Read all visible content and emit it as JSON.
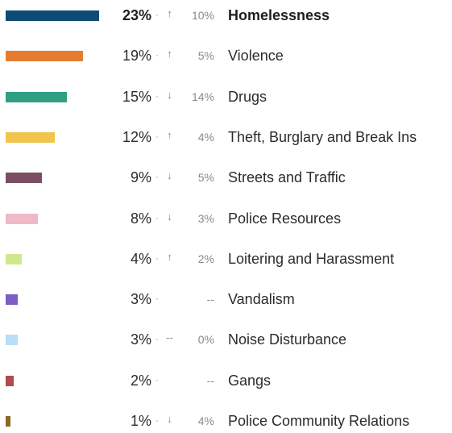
{
  "categories": [
    {
      "label": "Homelessness",
      "percent": "23%",
      "direction": "↑",
      "change": "10%",
      "color": "#0f4c75",
      "share": 0.23,
      "active": true
    },
    {
      "label": "Violence",
      "percent": "19%",
      "direction": "↑",
      "change": "5%",
      "color": "#e47e2e",
      "share": 0.19
    },
    {
      "label": "Drugs",
      "percent": "15%",
      "direction": "↓",
      "change": "14%",
      "color": "#2f9e82",
      "share": 0.15
    },
    {
      "label": "Theft, Burglary and Break Ins",
      "percent": "12%",
      "direction": "↑",
      "change": "4%",
      "color": "#f1c54b",
      "share": 0.12
    },
    {
      "label": "Streets and Traffic",
      "percent": "9%",
      "direction": "↓",
      "change": "5%",
      "color": "#7a4f63",
      "share": 0.09
    },
    {
      "label": "Police Resources",
      "percent": "8%",
      "direction": "↓",
      "change": "3%",
      "color": "#efb9c8",
      "share": 0.08
    },
    {
      "label": "Loitering and Harassment",
      "percent": "4%",
      "direction": "↑",
      "change": "2%",
      "color": "#cfe98a",
      "share": 0.04
    },
    {
      "label": "Vandalism",
      "percent": "3%",
      "direction": "",
      "change": "--",
      "color": "#7e5cc4",
      "share": 0.03
    },
    {
      "label": "Noise Disturbance",
      "percent": "3%",
      "direction": "--",
      "change": "0%",
      "color": "#b8def3",
      "share": 0.03
    },
    {
      "label": "Gangs",
      "percent": "2%",
      "direction": "",
      "change": "--",
      "color": "#b24c4c",
      "share": 0.02
    },
    {
      "label": "Police Community Relations",
      "percent": "1%",
      "direction": "↓",
      "change": "4%",
      "color": "#8a6a1e",
      "share": 0.01
    }
  ],
  "separator": "·"
}
